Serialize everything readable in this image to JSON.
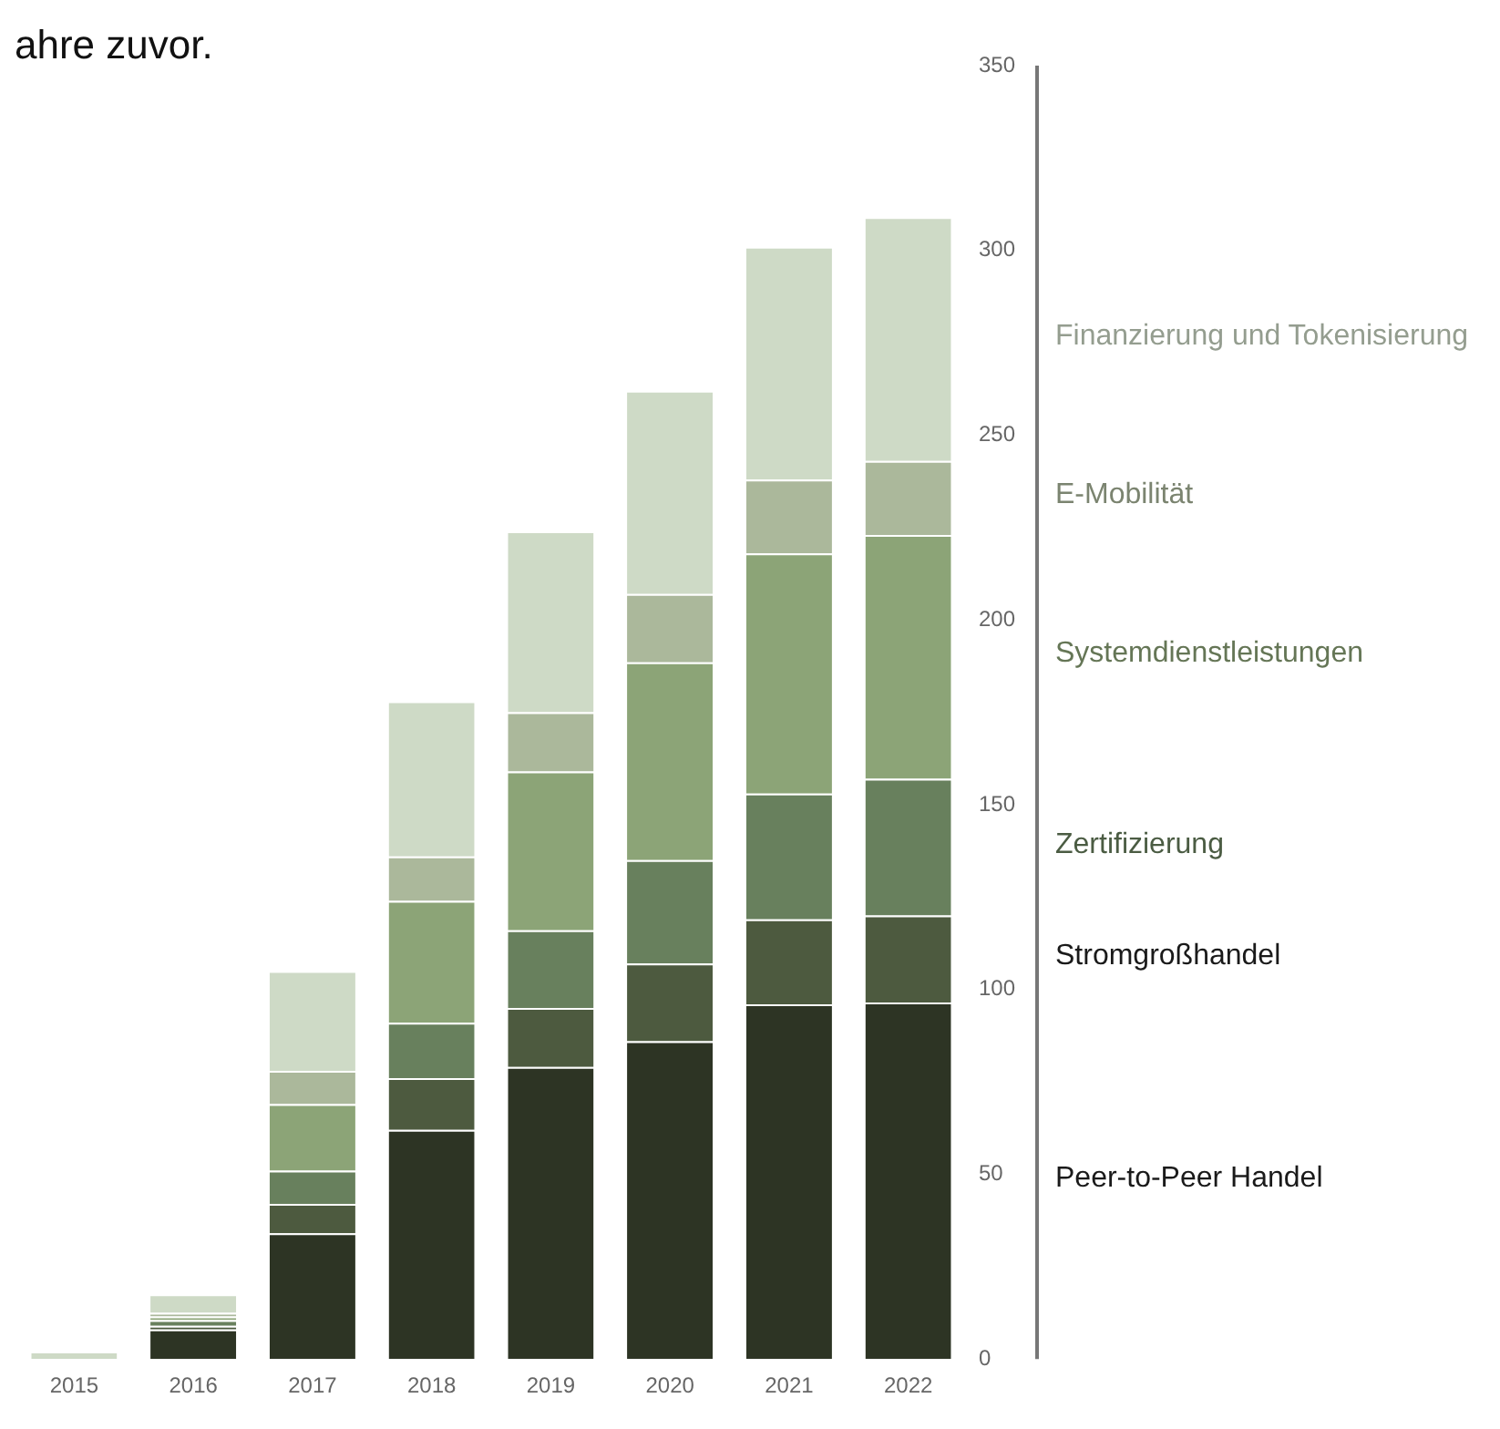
{
  "chart_data": {
    "type": "bar",
    "subtitle": "ahre zuvor.",
    "stacked": true,
    "categories": [
      "2015",
      "2016",
      "2017",
      "2018",
      "2019",
      "2020",
      "2021",
      "2022"
    ],
    "series": [
      {
        "name": "Peer-to-Peer Handel",
        "color": "#2d3424",
        "values": [
          0,
          8,
          34,
          62,
          79,
          86,
          96,
          96.5
        ]
      },
      {
        "name": "Stromgroßhandel",
        "color": "#4d5a3f",
        "values": [
          0,
          1,
          8,
          14,
          16,
          21,
          23,
          23.5
        ]
      },
      {
        "name": "Zertifizierung",
        "color": "#68805d",
        "values": [
          0,
          1.5,
          9,
          15,
          21,
          28,
          34,
          37
        ]
      },
      {
        "name": "Systemdienstleistungen",
        "color": "#8ca477",
        "values": [
          0,
          1,
          18,
          33,
          43,
          53.5,
          65,
          66
        ]
      },
      {
        "name": "E-Mobilität",
        "color": "#abb89b",
        "values": [
          0,
          1,
          9,
          12,
          16,
          18.5,
          20,
          20
        ]
      },
      {
        "name": "Finanzierung und Tokenisierung",
        "color": "#cedac6",
        "values": [
          2,
          5,
          27,
          42,
          49,
          55,
          63,
          66
        ]
      }
    ],
    "ylim": [
      0,
      350
    ],
    "yticks": [
      0,
      50,
      100,
      150,
      200,
      250,
      300,
      350
    ],
    "grid": false,
    "legend": "right"
  }
}
